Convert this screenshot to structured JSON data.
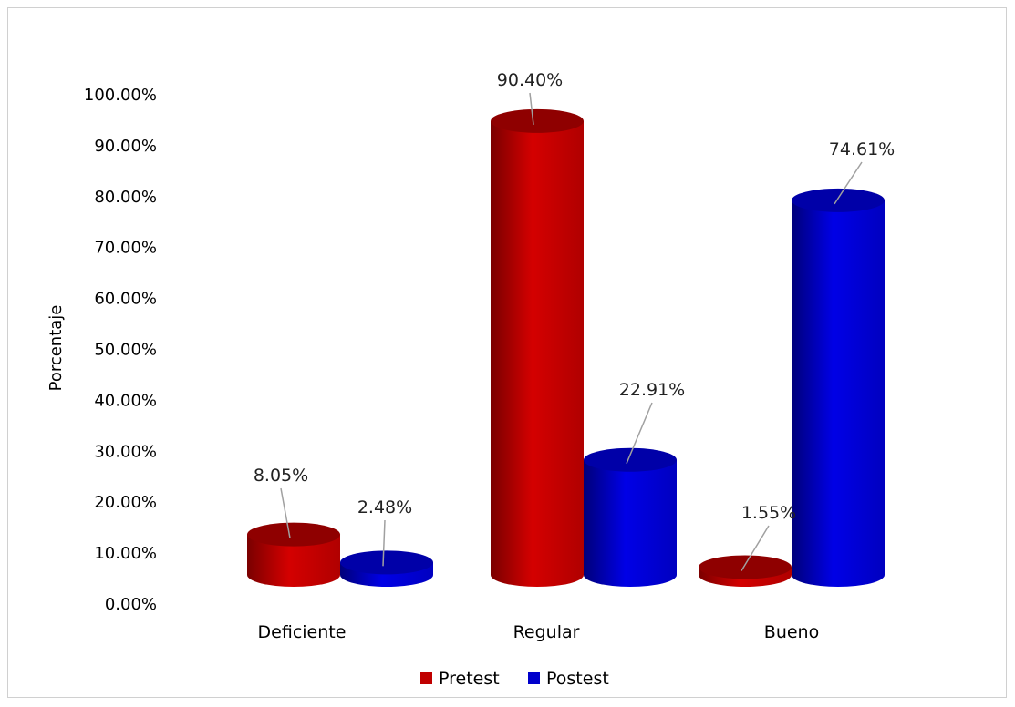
{
  "chart_data": {
    "type": "bar",
    "style": "3d-cylinder",
    "title": "",
    "xlabel": "",
    "ylabel": "Porcentaje",
    "categories": [
      "Deficiente",
      "Regular",
      "Bueno"
    ],
    "series": [
      {
        "name": "Pretest",
        "color": "#c00000",
        "values": [
          8.05,
          90.4,
          1.55
        ],
        "labels": [
          "8.05%",
          "90.40%",
          "1.55%"
        ]
      },
      {
        "name": "Postest",
        "color": "#0000cc",
        "values": [
          2.48,
          22.91,
          74.61
        ],
        "labels": [
          "2.48%",
          "22.91%",
          "74.61%"
        ]
      }
    ],
    "ylim": [
      0,
      100
    ],
    "yticks": [
      "0.00%",
      "10.00%",
      "20.00%",
      "30.00%",
      "40.00%",
      "50.00%",
      "60.00%",
      "70.00%",
      "80.00%",
      "90.00%",
      "100.00%"
    ],
    "grid": false,
    "legend_position": "bottom"
  }
}
